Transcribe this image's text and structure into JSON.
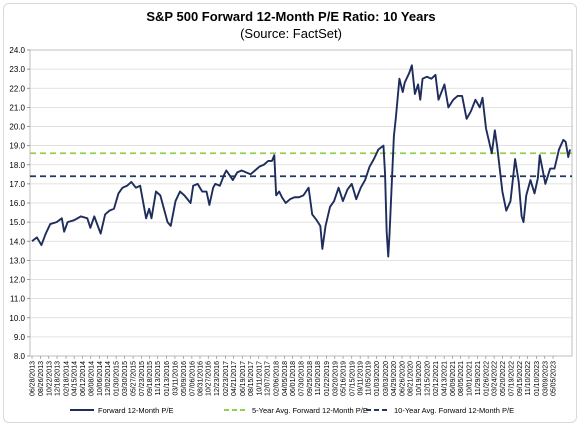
{
  "chart_data": {
    "type": "line",
    "title": "S&P 500 Forward 12-Month P/E Ratio: 10 Years",
    "subtitle": "(Source: FactSet)",
    "ylim": [
      8.0,
      24.0
    ],
    "yticks": [
      "8.0",
      "9.0",
      "10.0",
      "11.0",
      "12.0",
      "13.0",
      "14.0",
      "15.0",
      "16.0",
      "17.0",
      "18.0",
      "19.0",
      "20.0",
      "21.0",
      "22.0",
      "23.0",
      "24.0"
    ],
    "xlim": [
      "2013-06-28",
      "2023-08-30"
    ],
    "xticks": [
      "06/28/2013",
      "08/26/2013",
      "10/22/2013",
      "12/18/2013",
      "02/18/2014",
      "04/15/2014",
      "06/12/2014",
      "08/08/2014",
      "10/06/2014",
      "12/02/2014",
      "01/30/2015",
      "03/30/2015",
      "05/27/2015",
      "07/23/2015",
      "09/18/2015",
      "11/13/2015",
      "01/13/2016",
      "03/11/2016",
      "05/09/2016",
      "07/06/2016",
      "08/31/2016",
      "10/27/2016",
      "12/23/2016",
      "02/23/2017",
      "04/21/2017",
      "06/19/2017",
      "08/15/2017",
      "10/11/2017",
      "12/07/2017",
      "02/06/2018",
      "04/05/2018",
      "06/01/2018",
      "07/30/2018",
      "09/25/2018",
      "11/20/2018",
      "01/22/2019",
      "03/20/2019",
      "05/16/2019",
      "07/15/2019",
      "09/11/2019",
      "11/05/2019",
      "01/03/2020",
      "03/03/2020",
      "04/29/2020",
      "06/26/2020",
      "08/21/2020",
      "10/19/2020",
      "12/15/2020",
      "02/12/2021",
      "04/13/2021",
      "06/09/2021",
      "08/05/2021",
      "10/01/2021",
      "11/29/2021",
      "01/26/2022",
      "03/24/2022",
      "05/20/2022",
      "07/19/2022",
      "09/15/2022",
      "11/10/2022",
      "01/10/2023",
      "03/09/2023",
      "05/05/2023"
    ],
    "reference_lines": [
      {
        "name": "5-Year Avg. Forward 12-Month P/E",
        "value": 18.6,
        "color": "#92d050"
      },
      {
        "name": "10-Year Avg. Forward 12-Month P/E",
        "value": 17.4,
        "color": "#1f3864"
      }
    ],
    "series": [
      {
        "name": "Forward 12-Month P/E",
        "color": "#1f2d5c",
        "points": [
          [
            "2013-06-28",
            14.0
          ],
          [
            "2013-08-01",
            14.2
          ],
          [
            "2013-09-01",
            13.8
          ],
          [
            "2013-10-01",
            14.4
          ],
          [
            "2013-11-01",
            14.9
          ],
          [
            "2013-12-15",
            15.0
          ],
          [
            "2014-01-20",
            15.2
          ],
          [
            "2014-02-05",
            14.5
          ],
          [
            "2014-03-01",
            15.0
          ],
          [
            "2014-04-15",
            15.1
          ],
          [
            "2014-06-01",
            15.3
          ],
          [
            "2014-07-15",
            15.2
          ],
          [
            "2014-08-05",
            14.7
          ],
          [
            "2014-09-01",
            15.3
          ],
          [
            "2014-10-15",
            14.4
          ],
          [
            "2014-11-15",
            15.4
          ],
          [
            "2014-12-15",
            15.6
          ],
          [
            "2015-01-15",
            15.7
          ],
          [
            "2015-02-15",
            16.5
          ],
          [
            "2015-03-15",
            16.8
          ],
          [
            "2015-04-15",
            16.9
          ],
          [
            "2015-05-15",
            17.1
          ],
          [
            "2015-06-15",
            16.8
          ],
          [
            "2015-07-15",
            16.9
          ],
          [
            "2015-08-25",
            15.2
          ],
          [
            "2015-09-15",
            15.7
          ],
          [
            "2015-10-01",
            15.2
          ],
          [
            "2015-11-01",
            16.6
          ],
          [
            "2015-12-01",
            16.4
          ],
          [
            "2016-01-20",
            15.0
          ],
          [
            "2016-02-11",
            14.8
          ],
          [
            "2016-03-15",
            16.1
          ],
          [
            "2016-04-15",
            16.6
          ],
          [
            "2016-05-15",
            16.4
          ],
          [
            "2016-06-27",
            16.0
          ],
          [
            "2016-07-15",
            16.9
          ],
          [
            "2016-08-15",
            17.0
          ],
          [
            "2016-09-15",
            16.6
          ],
          [
            "2016-10-15",
            16.6
          ],
          [
            "2016-11-04",
            15.9
          ],
          [
            "2016-11-30",
            16.8
          ],
          [
            "2016-12-15",
            17.0
          ],
          [
            "2017-01-15",
            16.9
          ],
          [
            "2017-02-15",
            17.5
          ],
          [
            "2017-03-01",
            17.7
          ],
          [
            "2017-04-15",
            17.2
          ],
          [
            "2017-05-15",
            17.6
          ],
          [
            "2017-06-15",
            17.7
          ],
          [
            "2017-07-15",
            17.6
          ],
          [
            "2017-08-15",
            17.5
          ],
          [
            "2017-09-15",
            17.7
          ],
          [
            "2017-10-15",
            17.9
          ],
          [
            "2017-11-15",
            18.0
          ],
          [
            "2017-12-15",
            18.2
          ],
          [
            "2018-01-10",
            18.2
          ],
          [
            "2018-01-26",
            18.5
          ],
          [
            "2018-02-08",
            16.4
          ],
          [
            "2018-03-01",
            16.6
          ],
          [
            "2018-03-20",
            16.3
          ],
          [
            "2018-04-15",
            16.0
          ],
          [
            "2018-05-15",
            16.2
          ],
          [
            "2018-06-15",
            16.3
          ],
          [
            "2018-07-15",
            16.3
          ],
          [
            "2018-08-15",
            16.4
          ],
          [
            "2018-09-20",
            16.8
          ],
          [
            "2018-10-15",
            15.4
          ],
          [
            "2018-11-15",
            15.1
          ],
          [
            "2018-12-10",
            14.8
          ],
          [
            "2018-12-24",
            13.6
          ],
          [
            "2019-01-15",
            14.8
          ],
          [
            "2019-02-15",
            15.8
          ],
          [
            "2019-03-15",
            16.1
          ],
          [
            "2019-04-15",
            16.8
          ],
          [
            "2019-05-15",
            16.1
          ],
          [
            "2019-06-15",
            16.7
          ],
          [
            "2019-07-15",
            17.0
          ],
          [
            "2019-08-15",
            16.2
          ],
          [
            "2019-09-15",
            16.8
          ],
          [
            "2019-10-15",
            17.2
          ],
          [
            "2019-11-15",
            17.9
          ],
          [
            "2019-12-15",
            18.3
          ],
          [
            "2020-01-15",
            18.8
          ],
          [
            "2020-02-19",
            19.0
          ],
          [
            "2020-03-01",
            17.5
          ],
          [
            "2020-03-12",
            14.5
          ],
          [
            "2020-03-23",
            13.2
          ],
          [
            "2020-04-01",
            14.4
          ],
          [
            "2020-04-15",
            16.8
          ],
          [
            "2020-05-01",
            19.5
          ],
          [
            "2020-05-15",
            20.5
          ],
          [
            "2020-06-08",
            22.5
          ],
          [
            "2020-07-01",
            21.8
          ],
          [
            "2020-07-15",
            22.3
          ],
          [
            "2020-08-15",
            22.8
          ],
          [
            "2020-09-02",
            23.2
          ],
          [
            "2020-09-23",
            21.7
          ],
          [
            "2020-10-15",
            22.2
          ],
          [
            "2020-10-30",
            21.4
          ],
          [
            "2020-11-15",
            22.5
          ],
          [
            "2020-12-15",
            22.6
          ],
          [
            "2021-01-15",
            22.5
          ],
          [
            "2021-02-12",
            22.7
          ],
          [
            "2021-03-05",
            21.4
          ],
          [
            "2021-04-15",
            22.2
          ],
          [
            "2021-05-12",
            21.0
          ],
          [
            "2021-06-15",
            21.4
          ],
          [
            "2021-07-15",
            21.6
          ],
          [
            "2021-08-15",
            21.6
          ],
          [
            "2021-09-15",
            20.4
          ],
          [
            "2021-10-15",
            20.8
          ],
          [
            "2021-11-15",
            21.4
          ],
          [
            "2021-12-15",
            21.0
          ],
          [
            "2022-01-03",
            21.5
          ],
          [
            "2022-01-27",
            19.9
          ],
          [
            "2022-03-08",
            18.6
          ],
          [
            "2022-03-29",
            19.8
          ],
          [
            "2022-04-15",
            18.9
          ],
          [
            "2022-05-20",
            16.6
          ],
          [
            "2022-06-16",
            15.6
          ],
          [
            "2022-07-15",
            16.1
          ],
          [
            "2022-08-16",
            18.3
          ],
          [
            "2022-09-10",
            17.1
          ],
          [
            "2022-09-30",
            15.3
          ],
          [
            "2022-10-13",
            15.0
          ],
          [
            "2022-11-01",
            16.4
          ],
          [
            "2022-11-30",
            17.2
          ],
          [
            "2022-12-28",
            16.5
          ],
          [
            "2023-01-20",
            17.3
          ],
          [
            "2023-02-02",
            18.5
          ],
          [
            "2023-03-13",
            17.0
          ],
          [
            "2023-04-15",
            17.8
          ],
          [
            "2023-05-15",
            17.8
          ],
          [
            "2023-06-15",
            18.8
          ],
          [
            "2023-07-15",
            19.3
          ],
          [
            "2023-07-31",
            19.2
          ],
          [
            "2023-08-18",
            18.4
          ],
          [
            "2023-08-30",
            18.8
          ]
        ]
      }
    ],
    "legend": {
      "placement": "bottom"
    }
  }
}
